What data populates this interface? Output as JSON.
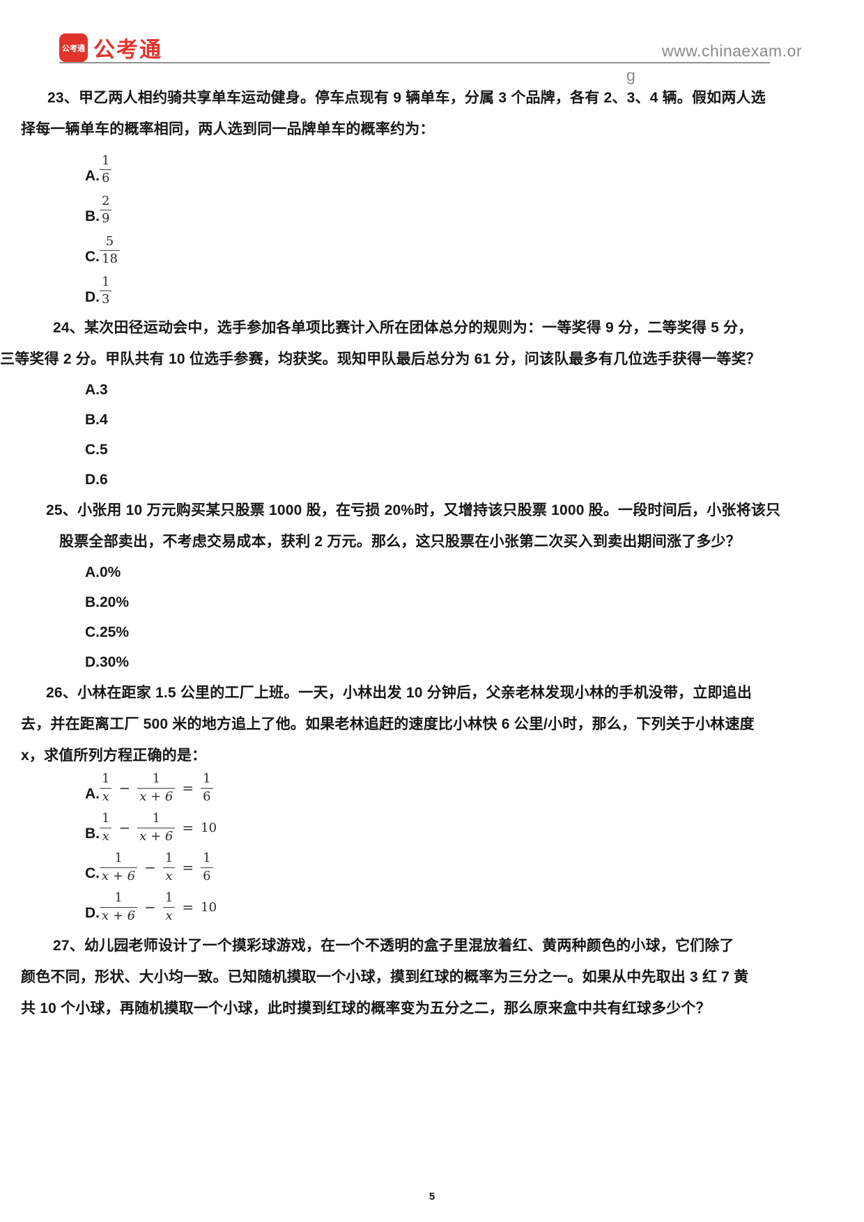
{
  "header": {
    "logo_badge": "公考通",
    "logo_text": "公考通",
    "url_line1": "www.chinaexam.or",
    "url_line2": "g",
    "brand_color": "#e1342c",
    "url_color": "#8a8a8a"
  },
  "questions": {
    "q23": {
      "lines": [
        "23、甲乙两人相约骑共享单车运动健身。停车点现有 9 辆单车，分属 3 个品牌，各有 2、3、4 辆。假如两人选",
        "择每一辆单车的概率相同，两人选到同一品牌单车的概率约为："
      ],
      "options": [
        {
          "label": "A.",
          "num": "1",
          "den": "6"
        },
        {
          "label": "B.",
          "num": "2",
          "den": "9"
        },
        {
          "label": "C.",
          "num": "5",
          "den": "18"
        },
        {
          "label": "D.",
          "num": "1",
          "den": "3"
        }
      ]
    },
    "q24": {
      "lines": [
        "24、某次田径运动会中，选手参加各单项比赛计入所在团体总分的规则为：一等奖得 9 分，二等奖得 5 分，",
        "三等奖得 2 分。甲队共有 10 位选手参赛，均获奖。现知甲队最后总分为 61 分，问该队最多有几位选手获得一等奖？"
      ],
      "options": [
        {
          "label": "A.",
          "text": "3"
        },
        {
          "label": "B.",
          "text": "4"
        },
        {
          "label": "C.",
          "text": "5"
        },
        {
          "label": "D.",
          "text": "6"
        }
      ]
    },
    "q25": {
      "lines": [
        "25、小张用 10 万元购买某只股票 1000 股，在亏损 20%时，又增持该只股票 1000 股。一段时间后，小张将该只",
        "股票全部卖出，不考虑交易成本，获利 2 万元。那么，这只股票在小张第二次买入到卖出期间涨了多少？"
      ],
      "options": [
        {
          "label": "A.",
          "text": "0%"
        },
        {
          "label": "B.",
          "text": "20%"
        },
        {
          "label": "C.",
          "text": "25%"
        },
        {
          "label": "D.",
          "text": "30%"
        }
      ]
    },
    "q26": {
      "lines": [
        "26、小林在距家 1.5 公里的工厂上班。一天，小林出发 10 分钟后，父亲老林发现小林的手机没带，立即追出",
        "去，并在距离工厂 500 米的地方追上了他。如果老林追赶的速度比小林快 6 公里/小时，那么，下列关于小林速度",
        "x，求值所列方程正确的是："
      ],
      "options": [
        {
          "label": "A.",
          "f1n": "1",
          "f1d": "x",
          "op": "−",
          "f2n": "1",
          "f2d": "x + 6",
          "eq": "=",
          "rn": "1",
          "rd": "6"
        },
        {
          "label": "B.",
          "f1n": "1",
          "f1d": "x",
          "op": "−",
          "f2n": "1",
          "f2d": "x + 6",
          "eq": "=",
          "rhs": "10"
        },
        {
          "label": "C.",
          "f1n": "1",
          "f1d": "x + 6",
          "op": "−",
          "f2n": "1",
          "f2d": "x",
          "eq": "=",
          "rn": "1",
          "rd": "6"
        },
        {
          "label": "D.",
          "f1n": "1",
          "f1d": "x + 6",
          "op": "−",
          "f2n": "1",
          "f2d": "x",
          "eq": "=",
          "rhs": "10"
        }
      ]
    },
    "q27": {
      "lines": [
        "27、幼儿园老师设计了一个摸彩球游戏，在一个不透明的盒子里混放着红、黄两种颜色的小球，它们除了",
        "颜色不同，形状、大小均一致。已知随机摸取一个小球，摸到红球的概率为三分之一。如果从中先取出 3 红 7 黄",
        "共 10 个小球，再随机摸取一个小球，此时摸到红球的概率变为五分之二，那么原来盒中共有红球多少个？"
      ]
    }
  },
  "footer": {
    "page_number": "5"
  }
}
